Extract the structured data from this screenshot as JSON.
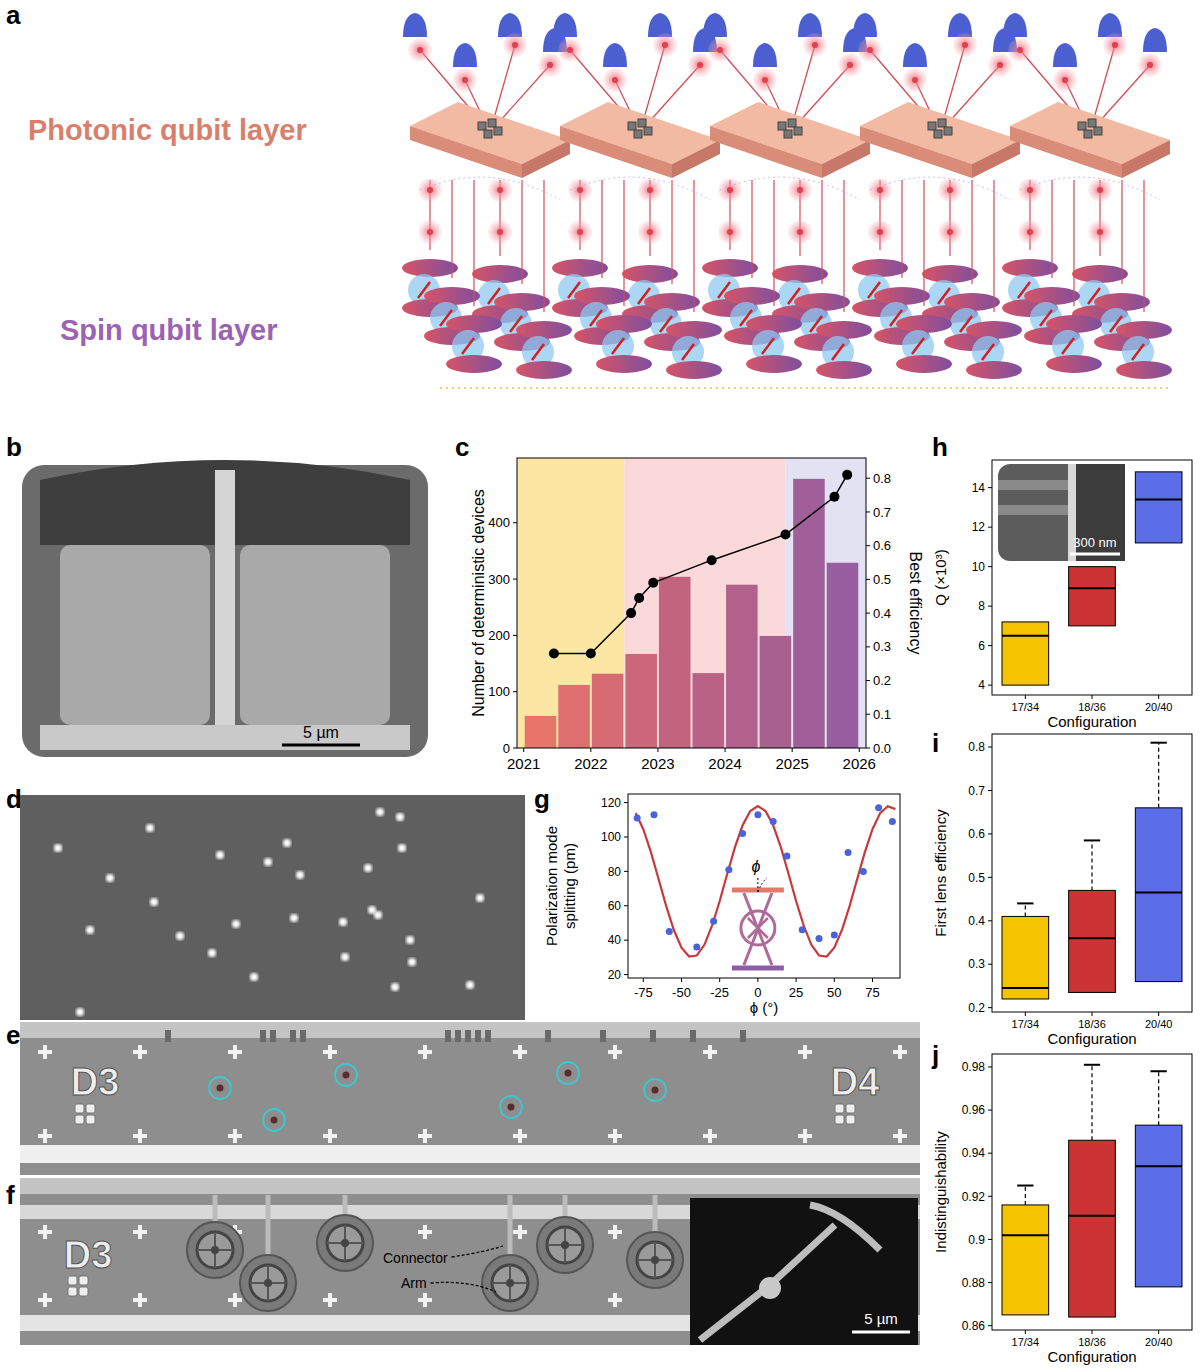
{
  "figure": {
    "panel_labels": [
      "a",
      "b",
      "c",
      "d",
      "e",
      "f",
      "g",
      "h",
      "i",
      "j"
    ],
    "a": {
      "photonic_label": "Photonic qubit layer",
      "spin_label": "Spin qubit layer"
    },
    "b": {
      "scale_bar": "5 µm"
    },
    "e": {
      "labels": [
        "D3",
        "D4"
      ]
    },
    "f": {
      "label": "D3",
      "connector": "Connector",
      "arm": "Arm",
      "scale_bar": "5 µm"
    }
  },
  "chart_data": [
    {
      "type": "bar",
      "y_label": "Number of deterministic devices",
      "y2_label": "Best efficiency",
      "xlim": [
        2020.9,
        2026.1
      ],
      "xticks": [
        2021,
        2022,
        2023,
        2024,
        2025,
        2026
      ],
      "ylim": [
        0,
        515
      ],
      "yticks": [
        0,
        100,
        200,
        300,
        400
      ],
      "y2lim": [
        0,
        0.86
      ],
      "y2ticks": [
        {
          "value": 0,
          "label": "0.0"
        },
        {
          "value": 0.1,
          "label": "0.1"
        },
        {
          "value": 0.2,
          "label": "0.2"
        },
        {
          "value": 0.3,
          "label": "0.3"
        },
        {
          "value": 0.4,
          "label": "0.4"
        },
        {
          "value": 0.5,
          "label": "0.5"
        },
        {
          "value": 0.6,
          "label": "0.6"
        },
        {
          "value": 0.7,
          "label": "0.7"
        },
        {
          "value": 0.8,
          "label": "0.8"
        }
      ],
      "regions": [
        {
          "start": 2020.9,
          "end": 2022.5,
          "color": "#fbe7a3"
        },
        {
          "start": 2022.5,
          "end": 2024.9,
          "color": "#fbd8da"
        },
        {
          "start": 2024.9,
          "end": 2026.1,
          "color": "#e2e2f3"
        }
      ],
      "series": [
        {
          "type": "bar",
          "x": [
            2021.25,
            2021.75,
            2022.25,
            2022.75,
            2023.25,
            2023.75,
            2024.25,
            2024.75,
            2025.25,
            2025.75
          ],
          "values": [
            57,
            112,
            132,
            167,
            304,
            133,
            290,
            199,
            478,
            329
          ],
          "colors": [
            "#e8756a",
            "#df6f6f",
            "#d66b74",
            "#cc6779",
            "#c3647f",
            "#b96285",
            "#b1618b",
            "#a86090",
            "#a05f98",
            "#985e9f"
          ]
        },
        {
          "type": "line",
          "axis": "y2",
          "color": "#000000",
          "marker": "circle",
          "x": [
            2021.45,
            2022.0,
            2022.6,
            2022.72,
            2022.93,
            2023.8,
            2024.9,
            2025.63,
            2025.82
          ],
          "values": [
            0.28,
            0.28,
            0.4,
            0.445,
            0.49,
            0.557,
            0.633,
            0.745,
            0.81
          ]
        }
      ]
    },
    {
      "type": "scatter",
      "x_label": "ϕ (°)",
      "y_label": "Polarization mode splitting (pm)",
      "xlim": [
        -85,
        93
      ],
      "xticks": [
        -75,
        -50,
        -25,
        0,
        25,
        50,
        75
      ],
      "ylim": [
        18,
        125
      ],
      "yticks": [
        20,
        40,
        60,
        80,
        100,
        120
      ],
      "annotations": [
        "ϕ"
      ],
      "series": [
        {
          "type": "scatter",
          "color": "#4a63d8",
          "marker": "circle",
          "x": [
            -79,
            -68,
            -58,
            -40,
            -29,
            -19,
            -10,
            0,
            10,
            19,
            29,
            40,
            50,
            59,
            69,
            79,
            88
          ],
          "values": [
            111,
            113,
            45,
            36,
            51,
            81,
            102,
            113,
            109,
            89,
            46,
            41,
            43,
            91,
            80,
            117,
            109
          ]
        },
        {
          "type": "line",
          "color": "#c8393b",
          "x": [
            -80,
            -75,
            -70,
            -65,
            -60,
            -55,
            -50,
            -45,
            -40,
            -35,
            -30,
            -25,
            -20,
            -15,
            -10,
            -5,
            0,
            5,
            10,
            15,
            20,
            25,
            30,
            35,
            40,
            45,
            50,
            55,
            60,
            65,
            70,
            75,
            80,
            85,
            90
          ],
          "values": [
            113.9,
            104.5,
            91.2,
            75.6,
            59.8,
            45.9,
            35.6,
            30.5,
            31.1,
            37.3,
            48.4,
            62.8,
            78.8,
            94.1,
            106.8,
            115.1,
            118,
            115.1,
            106.8,
            94.1,
            78.8,
            62.8,
            48.4,
            37.3,
            31.1,
            30.5,
            35.6,
            45.9,
            59.8,
            75.6,
            91.2,
            104.5,
            113.9,
            117.9,
            116.2
          ]
        }
      ]
    },
    {
      "type": "box",
      "x_label": "Configuration",
      "y_label": "Q (×10³)",
      "categories": [
        "17/34",
        "18/36",
        "20/40"
      ],
      "colors": [
        "#f5c400",
        "#cc3333",
        "#5b6ee8"
      ],
      "q1": [
        4.0,
        7.0,
        11.2
      ],
      "median": [
        6.5,
        8.9,
        13.4
      ],
      "q3": [
        7.2,
        10.0,
        14.8
      ],
      "ylim": [
        3.5,
        15.4
      ],
      "yticks": [
        4,
        6,
        8,
        10,
        12,
        14
      ],
      "annotations": [
        "300 nm"
      ]
    },
    {
      "type": "box",
      "x_label": "Configuration",
      "y_label": "First lens efficiency",
      "categories": [
        "17/34",
        "18/36",
        "20/40"
      ],
      "colors": [
        "#f5c400",
        "#cc3333",
        "#5b6ee8"
      ],
      "q1": [
        0.22,
        0.235,
        0.26
      ],
      "median": [
        0.245,
        0.36,
        0.465
      ],
      "q3": [
        0.41,
        0.47,
        0.66
      ],
      "whisker_high": [
        0.44,
        0.585,
        0.81
      ],
      "ylim": [
        0.19,
        0.83
      ],
      "yticks": [
        0.2,
        0.3,
        0.4,
        0.5,
        0.6,
        0.7,
        0.8
      ]
    },
    {
      "type": "box",
      "x_label": "Configuration",
      "y_label": "Indistinguishability",
      "categories": [
        "17/34",
        "18/36",
        "20/40"
      ],
      "colors": [
        "#f5c400",
        "#cc3333",
        "#5b6ee8"
      ],
      "q1": [
        0.865,
        0.864,
        0.878
      ],
      "median": [
        0.902,
        0.911,
        0.934
      ],
      "q3": [
        0.916,
        0.946,
        0.953
      ],
      "whisker_high": [
        0.925,
        0.981,
        0.978
      ],
      "ylim": [
        0.858,
        0.986
      ],
      "yticks": [
        0.86,
        0.88,
        0.9,
        0.92,
        0.94,
        0.96,
        0.98
      ]
    }
  ]
}
